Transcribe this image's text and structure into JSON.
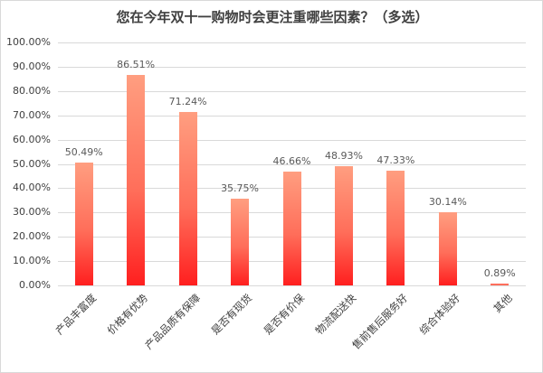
{
  "chart_data": {
    "type": "bar",
    "title": "您在今年双十一购物时会更注重哪些因素？（多选）",
    "xlabel": "",
    "ylabel": "",
    "ylim": [
      0,
      100
    ],
    "yticks": [
      "0.00%",
      "10.00%",
      "20.00%",
      "30.00%",
      "40.00%",
      "50.00%",
      "60.00%",
      "70.00%",
      "80.00%",
      "90.00%",
      "100.00%"
    ],
    "grid": true,
    "legend": null,
    "categories": [
      "产品丰富度",
      "价格有优势",
      "产品品质有保障",
      "是否有现货",
      "是否有价保",
      "物流配送快",
      "售前售后服务好",
      "综合体验好",
      "其他"
    ],
    "values": [
      50.49,
      86.51,
      71.24,
      35.75,
      46.66,
      48.93,
      47.33,
      30.14,
      0.89
    ],
    "value_labels": [
      "50.49%",
      "86.51%",
      "71.24%",
      "35.75%",
      "46.66%",
      "48.93%",
      "47.33%",
      "30.14%",
      "0.89%"
    ],
    "colors": {
      "bar_top": "#ff9e80",
      "bar_bottom": "#ff1f1f",
      "grid": "#d9d9d9",
      "text": "#404040"
    }
  }
}
